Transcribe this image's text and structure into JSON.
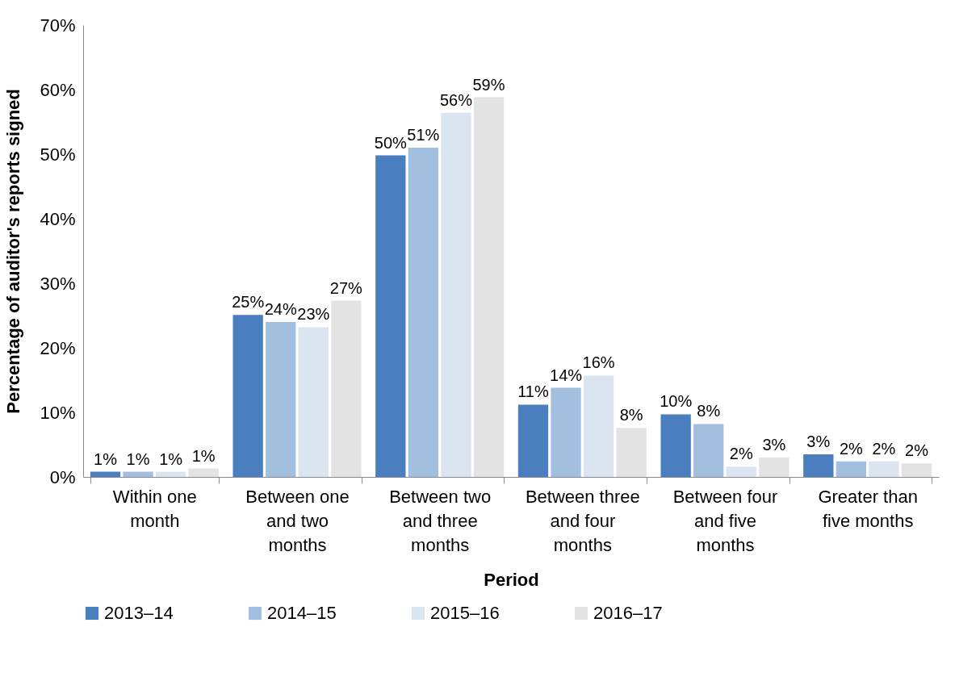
{
  "chart_data": {
    "type": "bar",
    "xlabel": "Period",
    "ylabel": "Percentage of auditor's reports signed",
    "categories": [
      "Within one month",
      "Between one and two months",
      "Between two and three months",
      "Between three and four months",
      "Between four and five months",
      "Greater than five months"
    ],
    "series": [
      {
        "name": "2013–14",
        "color": "#4a7ebf",
        "values": [
          0.8,
          25.1,
          49.8,
          11.2,
          9.7,
          3.5
        ],
        "value_labels": [
          "1%",
          "25%",
          "50%",
          "11%",
          "10%",
          "3%"
        ]
      },
      {
        "name": "2014–15",
        "color": "#a3bfdf",
        "values": [
          0.8,
          24,
          51,
          13.8,
          8.2,
          2.4
        ],
        "value_labels": [
          "1%",
          "24%",
          "51%",
          "14%",
          "8%",
          "2%"
        ]
      },
      {
        "name": "2015–16",
        "color": "#dbe5f2",
        "values": [
          0.8,
          23.2,
          56.4,
          15.7,
          1.6,
          2.4
        ],
        "value_labels": [
          "1%",
          "23%",
          "56%",
          "16%",
          "2%",
          "2%"
        ]
      },
      {
        "name": "2016–17",
        "color": "#e3e3e3",
        "values": [
          1.3,
          27.3,
          58.8,
          7.6,
          3,
          2.1
        ],
        "value_labels": [
          "1%",
          "27%",
          "59%",
          "8%",
          "3%",
          "2%"
        ]
      }
    ],
    "ylim": [
      0,
      70
    ],
    "yticks": [
      {
        "value": 0,
        "label": "0%"
      },
      {
        "value": 10,
        "label": "10%"
      },
      {
        "value": 20,
        "label": "20%"
      },
      {
        "value": 30,
        "label": "30%"
      },
      {
        "value": 40,
        "label": "40%"
      },
      {
        "value": 50,
        "label": "50%"
      },
      {
        "value": 60,
        "label": "60%"
      },
      {
        "value": 70,
        "label": "70%"
      }
    ],
    "grid": false,
    "legend": "bottom"
  }
}
